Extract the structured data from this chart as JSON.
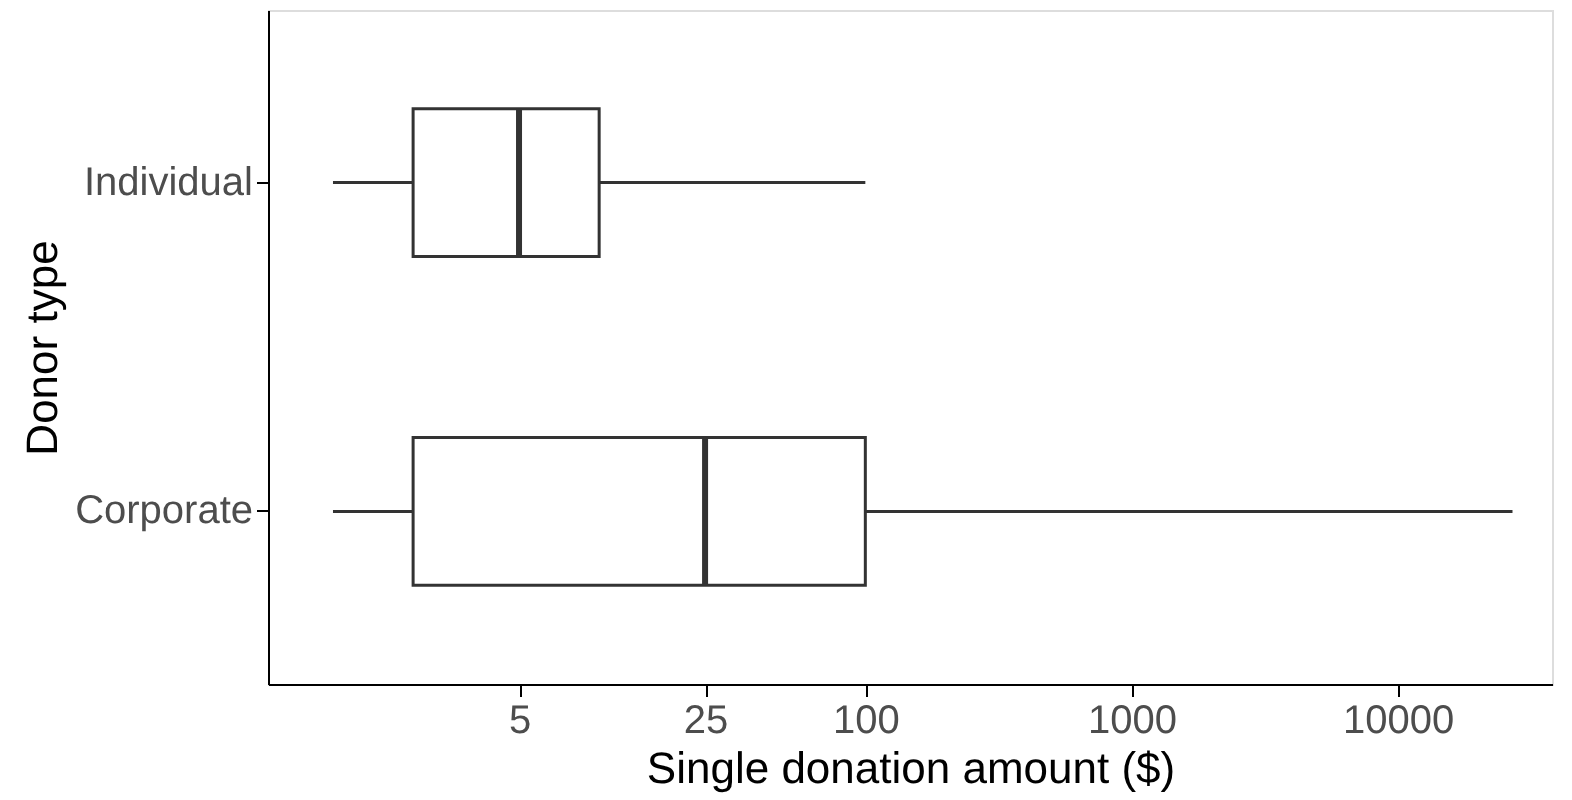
{
  "chart_data": {
    "type": "box",
    "orientation": "horizontal",
    "xlabel": "Single donation amount ($)",
    "ylabel": "Donor type",
    "categories": [
      "Individual",
      "Corporate"
    ],
    "boxes": [
      {
        "low": 1,
        "q1": 2,
        "median": 5,
        "q3": 10,
        "high": 100
      },
      {
        "low": 1,
        "q1": 2,
        "median": 25,
        "q3": 100,
        "high": 27000
      }
    ],
    "log": "x",
    "xlim": [
      0.57,
      38000
    ],
    "xticks": [
      5,
      25,
      100,
      1000,
      10000
    ],
    "grid": false
  }
}
